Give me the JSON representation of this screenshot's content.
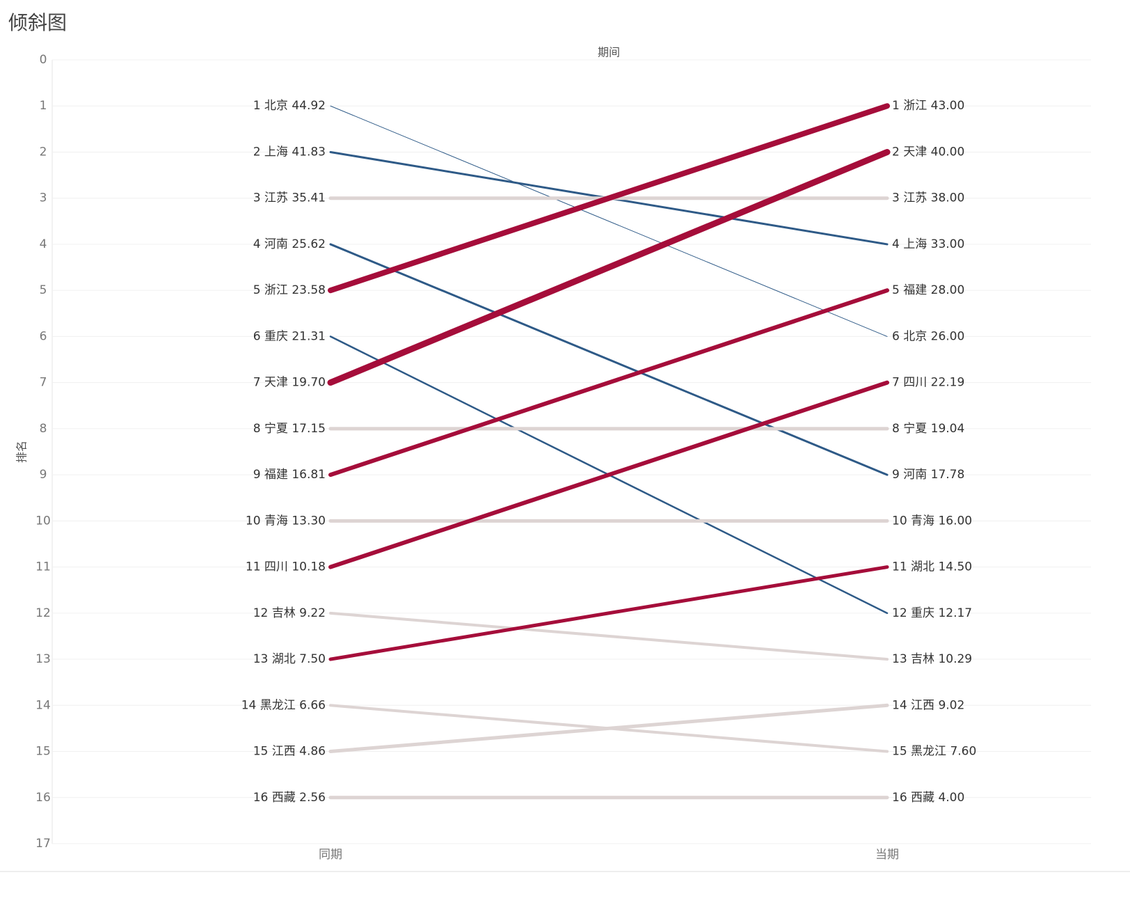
{
  "chart_data": {
    "type": "slope",
    "title": "倾斜图",
    "x_header": "期间",
    "ylabel": "排名",
    "categories": [
      "同期",
      "当期"
    ],
    "ylim": [
      0,
      17
    ],
    "yticks": [
      0,
      1,
      2,
      3,
      4,
      5,
      6,
      7,
      8,
      9,
      10,
      11,
      12,
      13,
      14,
      15,
      16,
      17
    ],
    "y_inverted": true,
    "grid": true,
    "series": [
      {
        "color": "#2e5a87",
        "line_width": 1,
        "values": [
          1,
          6
        ],
        "value_labels": [
          "1 北京 44.92",
          "6 北京 26.00"
        ]
      },
      {
        "color": "#2e5a87",
        "line_width": 3,
        "values": [
          2,
          4
        ],
        "value_labels": [
          "2 上海 41.83",
          "4 上海 33.00"
        ]
      },
      {
        "color": "#ddd4d3",
        "line_width": 5,
        "values": [
          3,
          3
        ],
        "value_labels": [
          "3 江苏 35.41",
          "3 江苏 38.00"
        ]
      },
      {
        "color": "#2e5a87",
        "line_width": 3,
        "values": [
          4,
          9
        ],
        "value_labels": [
          "4 河南 25.62",
          "9 河南 17.78"
        ]
      },
      {
        "color": "#a50d3a",
        "line_width": 8,
        "values": [
          5,
          1
        ],
        "value_labels": [
          "5 浙江 23.58",
          "1 浙江 43.00"
        ]
      },
      {
        "color": "#2e5a87",
        "line_width": 2.5,
        "values": [
          6,
          12
        ],
        "value_labels": [
          "6 重庆 21.31",
          "12 重庆 12.17"
        ]
      },
      {
        "color": "#a50d3a",
        "line_width": 9,
        "values": [
          7,
          2
        ],
        "value_labels": [
          "7 天津 19.70",
          "2 天津 40.00"
        ]
      },
      {
        "color": "#ddd4d3",
        "line_width": 5,
        "values": [
          8,
          8
        ],
        "value_labels": [
          "8 宁夏 17.15",
          "8 宁夏 19.04"
        ]
      },
      {
        "color": "#a50d3a",
        "line_width": 6,
        "values": [
          9,
          5
        ],
        "value_labels": [
          "9 福建 16.81",
          "5 福建 28.00"
        ]
      },
      {
        "color": "#ddd4d3",
        "line_width": 5,
        "values": [
          10,
          10
        ],
        "value_labels": [
          "10 青海 13.30",
          "10 青海 16.00"
        ]
      },
      {
        "color": "#a50d3a",
        "line_width": 6,
        "values": [
          11,
          7
        ],
        "value_labels": [
          "11 四川 10.18",
          "7 四川 22.19"
        ]
      },
      {
        "color": "#ddd4d3",
        "line_width": 4,
        "values": [
          12,
          13
        ],
        "value_labels": [
          "12 吉林 9.22",
          "13 吉林 10.29"
        ]
      },
      {
        "color": "#a50d3a",
        "line_width": 5,
        "values": [
          13,
          11
        ],
        "value_labels": [
          "13 湖北 7.50",
          "11 湖北 14.50"
        ]
      },
      {
        "color": "#ddd4d3",
        "line_width": 4,
        "values": [
          14,
          15
        ],
        "value_labels": [
          "14 黑龙江 6.66",
          "15 黑龙江 7.60"
        ]
      },
      {
        "color": "#ddd4d3",
        "line_width": 5,
        "values": [
          15,
          14
        ],
        "value_labels": [
          "15 江西 4.86",
          "14 江西 9.02"
        ]
      },
      {
        "color": "#ddd4d3",
        "line_width": 5,
        "values": [
          16,
          16
        ],
        "value_labels": [
          "16 西藏 2.56",
          "16 西藏 4.00"
        ]
      }
    ]
  }
}
